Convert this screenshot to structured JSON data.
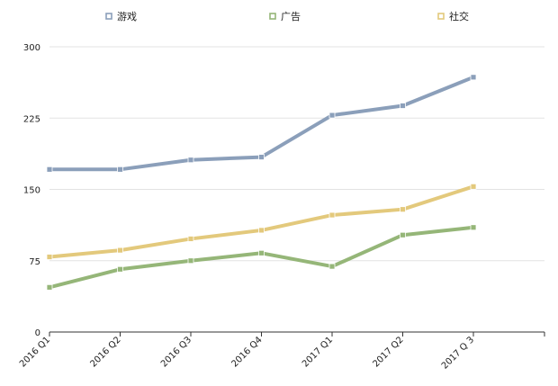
{
  "chart_data": {
    "type": "line",
    "categories": [
      "2016 Q1",
      "2016 Q2",
      "2016 Q3",
      "2016 Q4",
      "2017 Q1",
      "2017 Q2",
      "2017 Q 3"
    ],
    "series": [
      {
        "name": "游戏",
        "values": [
          171,
          171,
          181,
          184,
          228,
          238,
          268
        ],
        "color": "#8b9fba"
      },
      {
        "name": "广告",
        "values": [
          47,
          66,
          75,
          83,
          69,
          102,
          110
        ],
        "color": "#95b678"
      },
      {
        "name": "社交",
        "values": [
          79,
          86,
          98,
          107,
          123,
          129,
          153
        ],
        "color": "#e3c97c"
      }
    ],
    "y_ticks": [
      "0",
      "75",
      "150",
      "225",
      "300"
    ],
    "ylim": [
      0,
      300
    ],
    "title": "",
    "xlabel": "",
    "ylabel": "",
    "grid": true,
    "legend_position": "top"
  }
}
